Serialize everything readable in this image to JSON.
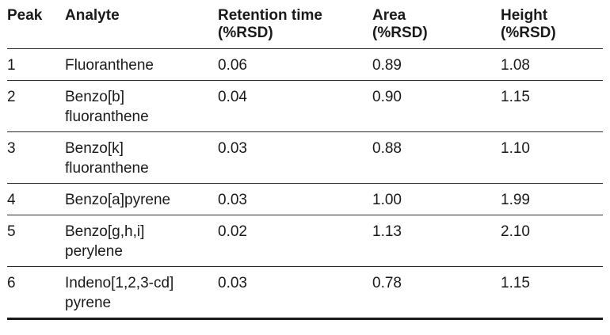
{
  "table": {
    "headers": [
      {
        "line1": "Peak",
        "line2": ""
      },
      {
        "line1": "Analyte",
        "line2": ""
      },
      {
        "line1": "Retention time",
        "line2": "(%RSD)"
      },
      {
        "line1": "Area",
        "line2": "(%RSD)"
      },
      {
        "line1": "Height",
        "line2": "(%RSD)"
      }
    ],
    "rows": [
      {
        "peak": "1",
        "analyte": "Fluoranthene",
        "retention": "0.06",
        "area": "0.89",
        "height": "1.08"
      },
      {
        "peak": "2",
        "analyte": "Benzo[b]\nfluoranthene",
        "retention": "0.04",
        "area": "0.90",
        "height": "1.15"
      },
      {
        "peak": "3",
        "analyte": "Benzo[k]\nfluoranthene",
        "retention": "0.03",
        "area": "0.88",
        "height": "1.10"
      },
      {
        "peak": "4",
        "analyte": "Benzo[a]pyrene",
        "retention": "0.03",
        "area": "1.00",
        "height": "1.99"
      },
      {
        "peak": "5",
        "analyte": "Benzo[g,h,i]\nperylene",
        "retention": "0.02",
        "area": "1.13",
        "height": "2.10"
      },
      {
        "peak": "6",
        "analyte": "Indeno[1,2,3-cd]\npyrene",
        "retention": "0.03",
        "area": "0.78",
        "height": "1.15"
      }
    ]
  }
}
